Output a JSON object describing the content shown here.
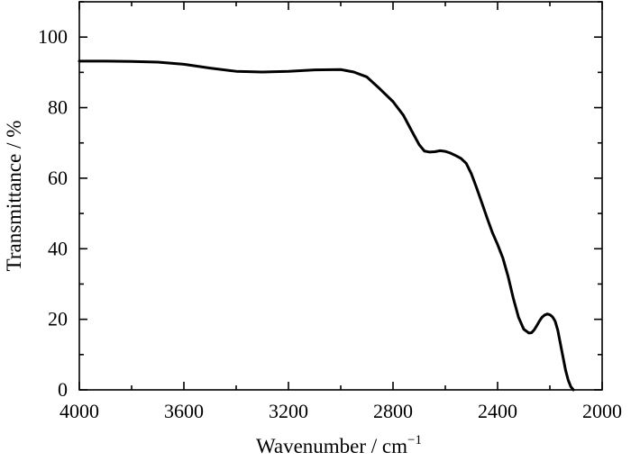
{
  "chart_data": {
    "type": "line",
    "title": "",
    "xlabel": "Wavenumber / cm",
    "xlabel_superscript": "−1",
    "ylabel": "Transmittance / %",
    "xlim": [
      4000,
      2000
    ],
    "ylim": [
      0,
      110
    ],
    "x_reversed": true,
    "x_ticks": [
      4000,
      3600,
      3200,
      2800,
      2400,
      2000
    ],
    "y_ticks": [
      0,
      20,
      40,
      60,
      80,
      100
    ],
    "x_minor_step": 200,
    "y_minor_step": 10,
    "grid": false,
    "legend": "none",
    "line_color": "#000000",
    "series": [
      {
        "x": [
          4000,
          3900,
          3800,
          3700,
          3600,
          3500,
          3400,
          3300,
          3200,
          3100,
          3000,
          2950,
          2900,
          2850,
          2800,
          2760,
          2730,
          2700,
          2680,
          2660,
          2640,
          2620,
          2600,
          2580,
          2560,
          2540,
          2520,
          2500,
          2480,
          2460,
          2440,
          2420,
          2400,
          2380,
          2360,
          2340,
          2320,
          2300,
          2280,
          2270,
          2260,
          2250,
          2240,
          2230,
          2220,
          2210,
          2200,
          2190,
          2180,
          2170,
          2160,
          2150,
          2140,
          2130,
          2120,
          2110
        ],
        "y": [
          93.2,
          93.2,
          93.1,
          92.9,
          92.3,
          91.2,
          90.3,
          90.1,
          90.3,
          90.7,
          90.8,
          90.1,
          88.7,
          85.3,
          81.7,
          77.8,
          73.6,
          69.5,
          67.7,
          67.4,
          67.5,
          67.8,
          67.6,
          67.1,
          66.4,
          65.6,
          64.2,
          61.2,
          57.2,
          53.0,
          48.7,
          44.6,
          41.2,
          37.4,
          32.2,
          26.0,
          20.6,
          17.2,
          16.1,
          16.2,
          17.0,
          18.2,
          19.5,
          20.6,
          21.2,
          21.5,
          21.3,
          20.7,
          19.5,
          17.0,
          13.2,
          9.4,
          5.6,
          2.8,
          0.9,
          0.0
        ]
      }
    ]
  }
}
